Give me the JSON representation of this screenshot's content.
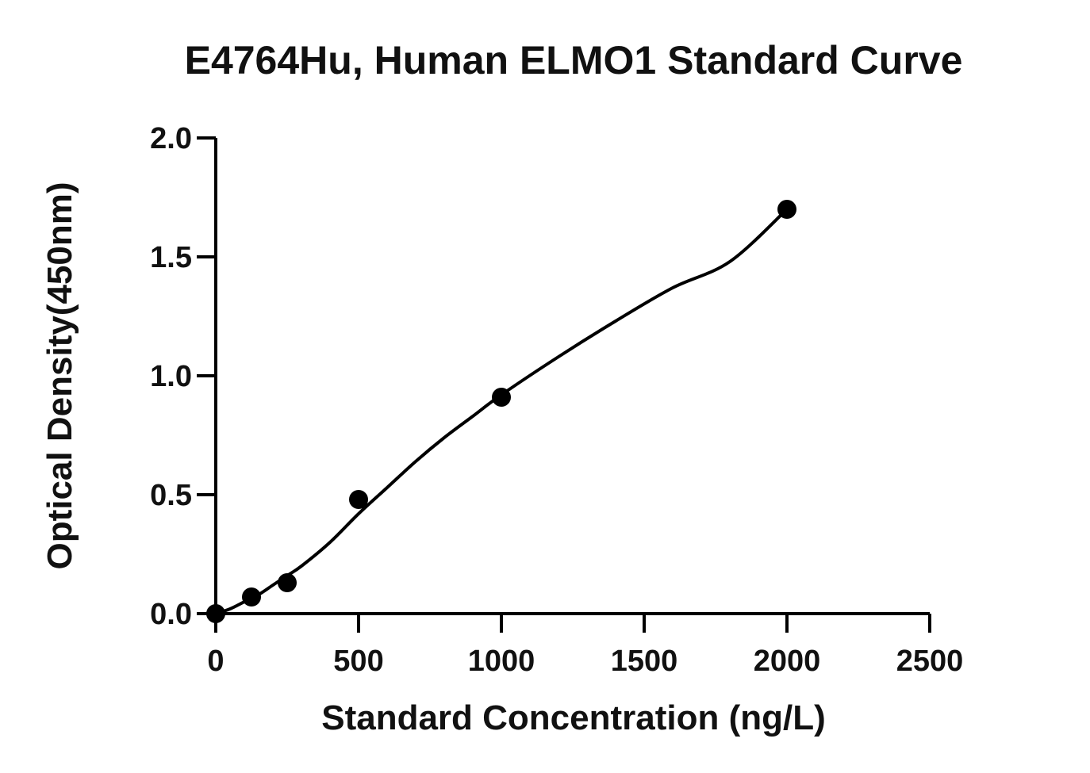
{
  "chart_data": {
    "type": "scatter",
    "title": "E4764Hu, Human ELMO1 Standard Curve",
    "xlabel": "Standard Concentration (ng/L)",
    "ylabel": "Optical Density(450nm)",
    "xlim": [
      0,
      2500
    ],
    "ylim": [
      0,
      2.0
    ],
    "x_ticks": [
      0,
      500,
      1000,
      1500,
      2000,
      2500
    ],
    "x_tick_labels": [
      "0",
      "500",
      "1000",
      "1500",
      "2000",
      "2500"
    ],
    "y_ticks": [
      0.0,
      0.5,
      1.0,
      1.5,
      2.0
    ],
    "y_tick_labels": [
      "0.0",
      "0.5",
      "1.0",
      "1.5",
      "2.0"
    ],
    "grid": false,
    "legend": "none",
    "series": [
      {
        "x": [
          0,
          125,
          250,
          500,
          1000,
          2000
        ],
        "y": [
          0.0,
          0.07,
          0.13,
          0.48,
          0.91,
          1.7
        ]
      }
    ],
    "fit_curve": {
      "x": [
        0,
        50,
        100,
        150,
        200,
        250,
        300,
        400,
        500,
        600,
        700,
        800,
        900,
        1000,
        1200,
        1400,
        1600,
        1800,
        2000
      ],
      "y": [
        0.0,
        0.02,
        0.05,
        0.08,
        0.12,
        0.16,
        0.2,
        0.3,
        0.42,
        0.53,
        0.64,
        0.74,
        0.83,
        0.92,
        1.08,
        1.23,
        1.37,
        1.48,
        1.7
      ]
    },
    "colors": {
      "points": "#000000",
      "curve": "#000000",
      "axes": "#000000",
      "text": "#111111"
    }
  }
}
